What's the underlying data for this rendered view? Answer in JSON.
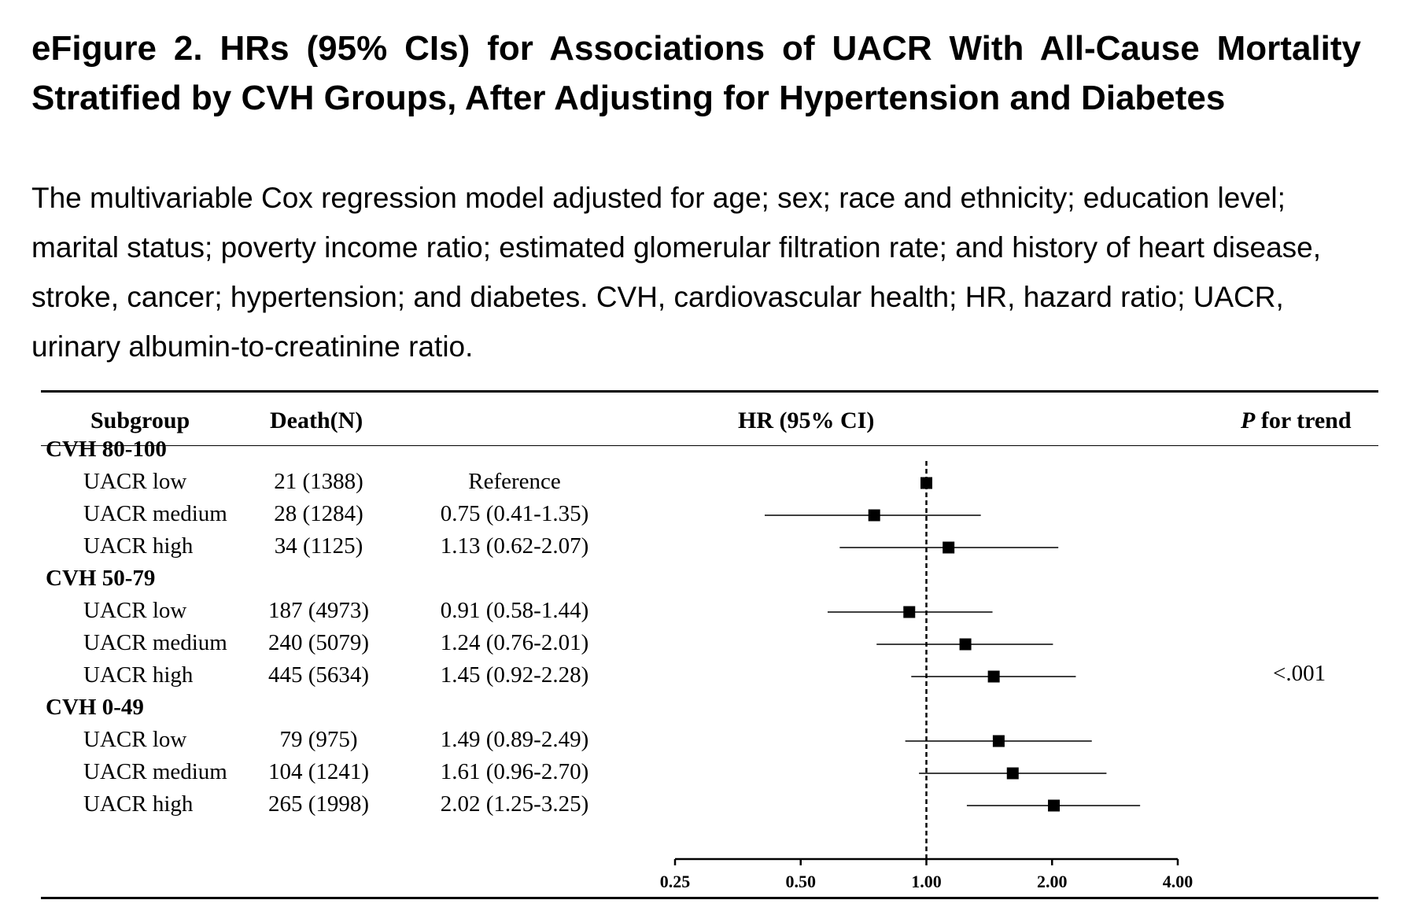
{
  "figure": {
    "title": "eFigure 2. HRs (95% CIs) for Associations of UACR With All-Cause Mortality Stratified by CVH Groups, After Adjusting for Hypertension and Diabetes",
    "caption": "The multivariable Cox regression model adjusted for age; sex; race and ethnicity; education level; marital status; poverty income ratio; estimated glomerular filtration rate; and history of heart disease, stroke, cancer; hypertension; and diabetes. CVH, cardiovascular health; HR, hazard ratio; UACR, urinary albumin-to-creatinine ratio."
  },
  "table": {
    "headers": {
      "subgroup": "Subgroup",
      "deaths": "Death(N)",
      "hr": "HR (95% CI)",
      "p_italic": "P",
      "p_rest": " for trend"
    },
    "groups": [
      {
        "label": "CVH 80-100",
        "rows": [
          {
            "label": "UACR low",
            "deaths": "21 (1388)",
            "hr_text": "Reference"
          },
          {
            "label": "UACR medium",
            "deaths": "28 (1284)",
            "hr_text": "0.75 (0.41-1.35)"
          },
          {
            "label": "UACR high",
            "deaths": "34 (1125)",
            "hr_text": "1.13 (0.62-2.07)"
          }
        ]
      },
      {
        "label": "CVH 50-79",
        "rows": [
          {
            "label": "UACR low",
            "deaths": "187 (4973)",
            "hr_text": "0.91 (0.58-1.44)"
          },
          {
            "label": "UACR medium",
            "deaths": "240 (5079)",
            "hr_text": "1.24 (0.76-2.01)"
          },
          {
            "label": "UACR high",
            "deaths": "445 (5634)",
            "hr_text": "1.45 (0.92-2.28)"
          }
        ]
      },
      {
        "label": "CVH 0-49",
        "rows": [
          {
            "label": "UACR low",
            "deaths": "79 (975)",
            "hr_text": "1.49 (0.89-2.49)"
          },
          {
            "label": "UACR medium",
            "deaths": "104 (1241)",
            "hr_text": "1.61 (0.96-2.70)"
          },
          {
            "label": "UACR high",
            "deaths": "265 (1998)",
            "hr_text": "2.02 (1.25-3.25)"
          }
        ]
      }
    ],
    "p_value": "<.001"
  },
  "chart_data": {
    "type": "scatter",
    "x_scale": "log",
    "xlim": [
      0.25,
      4.0
    ],
    "x_ticks": [
      0.25,
      0.5,
      1.0,
      2.0,
      4.0
    ],
    "x_tick_labels": [
      "0.25",
      "0.50",
      "1.00",
      "2.00",
      "4.00"
    ],
    "reference_line": 1.0,
    "points": [
      {
        "group": "CVH 80-100",
        "label": "UACR low",
        "hr": 1.0,
        "lo": null,
        "hi": null
      },
      {
        "group": "CVH 80-100",
        "label": "UACR medium",
        "hr": 0.75,
        "lo": 0.41,
        "hi": 1.35
      },
      {
        "group": "CVH 80-100",
        "label": "UACR high",
        "hr": 1.13,
        "lo": 0.62,
        "hi": 2.07
      },
      {
        "group": "CVH 50-79",
        "label": "UACR low",
        "hr": 0.91,
        "lo": 0.58,
        "hi": 1.44
      },
      {
        "group": "CVH 50-79",
        "label": "UACR medium",
        "hr": 1.24,
        "lo": 0.76,
        "hi": 2.01
      },
      {
        "group": "CVH 50-79",
        "label": "UACR high",
        "hr": 1.45,
        "lo": 0.92,
        "hi": 2.28
      },
      {
        "group": "CVH 0-49",
        "label": "UACR low",
        "hr": 1.49,
        "lo": 0.89,
        "hi": 2.49
      },
      {
        "group": "CVH 0-49",
        "label": "UACR medium",
        "hr": 1.61,
        "lo": 0.96,
        "hi": 2.7
      },
      {
        "group": "CVH 0-49",
        "label": "UACR high",
        "hr": 2.02,
        "lo": 1.25,
        "hi": 3.25
      }
    ]
  }
}
